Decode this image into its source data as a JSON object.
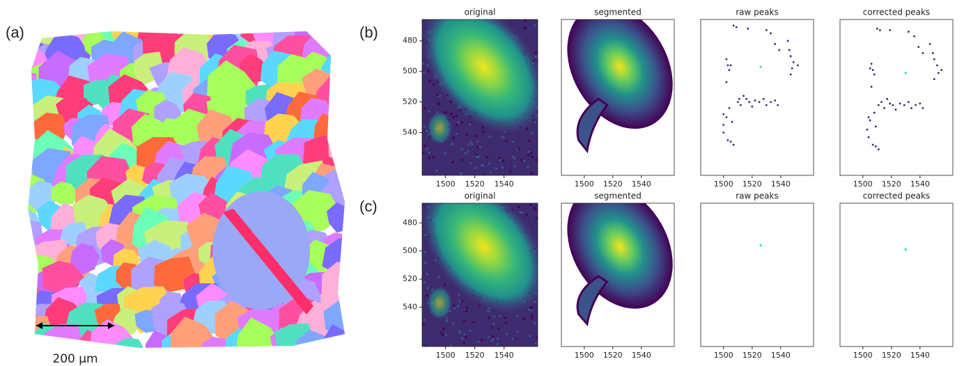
{
  "panel_labels": [
    "(a)",
    "(b)",
    "(c)"
  ],
  "scale_bar": "200 µm",
  "axes": {
    "xlim": [
      1484,
      1563
    ],
    "ylim": [
      568,
      466
    ],
    "xticks": [
      1500,
      1520,
      1540
    ],
    "yticks": [
      480,
      500,
      520,
      540
    ]
  },
  "rows": [
    {
      "subplots": [
        {
          "title": "original"
        },
        {
          "title": "segmented"
        },
        {
          "title": "raw peaks",
          "peaks": {
            "x": [
              1507,
              1509,
              1517,
              1530,
              1533,
              1536,
              1539,
              1545,
              1546,
              1547,
              1549,
              1552,
              1548,
              1547,
              1502,
              1503,
              1504,
              1505,
              1502,
              1510,
              1511,
              1512,
              1514,
              1516,
              1518,
              1520,
              1522,
              1525,
              1528,
              1530,
              1533,
              1536,
              1538,
              1504,
              1502,
              1500,
              1506,
              1500,
              1503,
              1505,
              1507,
              1500
            ],
            "y": [
              470,
              471,
              472,
              473,
              475,
              482,
              486,
              480,
              486,
              490,
              494,
              496,
              498,
              502,
              492,
              496,
              499,
              496,
              507,
              520,
              518,
              522,
              516,
              518,
              520,
              523,
              519,
              520,
              518,
              522,
              520,
              519,
              522,
              524,
              530,
              535,
              533,
              540,
              545,
              546,
              548,
              528
            ]
          },
          "center": {
            "x": 1526,
            "y": 497
          }
        },
        {
          "title": "corrected peaks",
          "peaks": {
            "x": [
              1510,
              1512,
              1519,
              1532,
              1536,
              1539,
              1542,
              1547,
              1549,
              1550,
              1552,
              1555,
              1553,
              1550,
              1506,
              1507,
              1508,
              1505,
              1506,
              1511,
              1513,
              1515,
              1517,
              1519,
              1521,
              1523,
              1526,
              1529,
              1532,
              1534,
              1537,
              1540,
              1542,
              1508,
              1505,
              1503,
              1509,
              1504,
              1507,
              1509,
              1511,
              1504
            ],
            "y": [
              472,
              473,
              473,
              474,
              477,
              484,
              488,
              482,
              488,
              492,
              496,
              499,
              501,
              505,
              495,
              499,
              502,
              498,
              510,
              522,
              520,
              524,
              518,
              521,
              522,
              525,
              521,
              522,
              520,
              524,
              522,
              521,
              524,
              527,
              532,
              538,
              536,
              543,
              548,
              549,
              551,
              530
            ]
          },
          "center": {
            "x": 1530,
            "y": 501
          }
        }
      ]
    },
    {
      "subplots": [
        {
          "title": "original"
        },
        {
          "title": "segmented"
        },
        {
          "title": "raw peaks",
          "center": {
            "x": 1526,
            "y": 496
          }
        },
        {
          "title": "corrected peaks",
          "center": {
            "x": 1530,
            "y": 499
          }
        }
      ]
    }
  ]
}
